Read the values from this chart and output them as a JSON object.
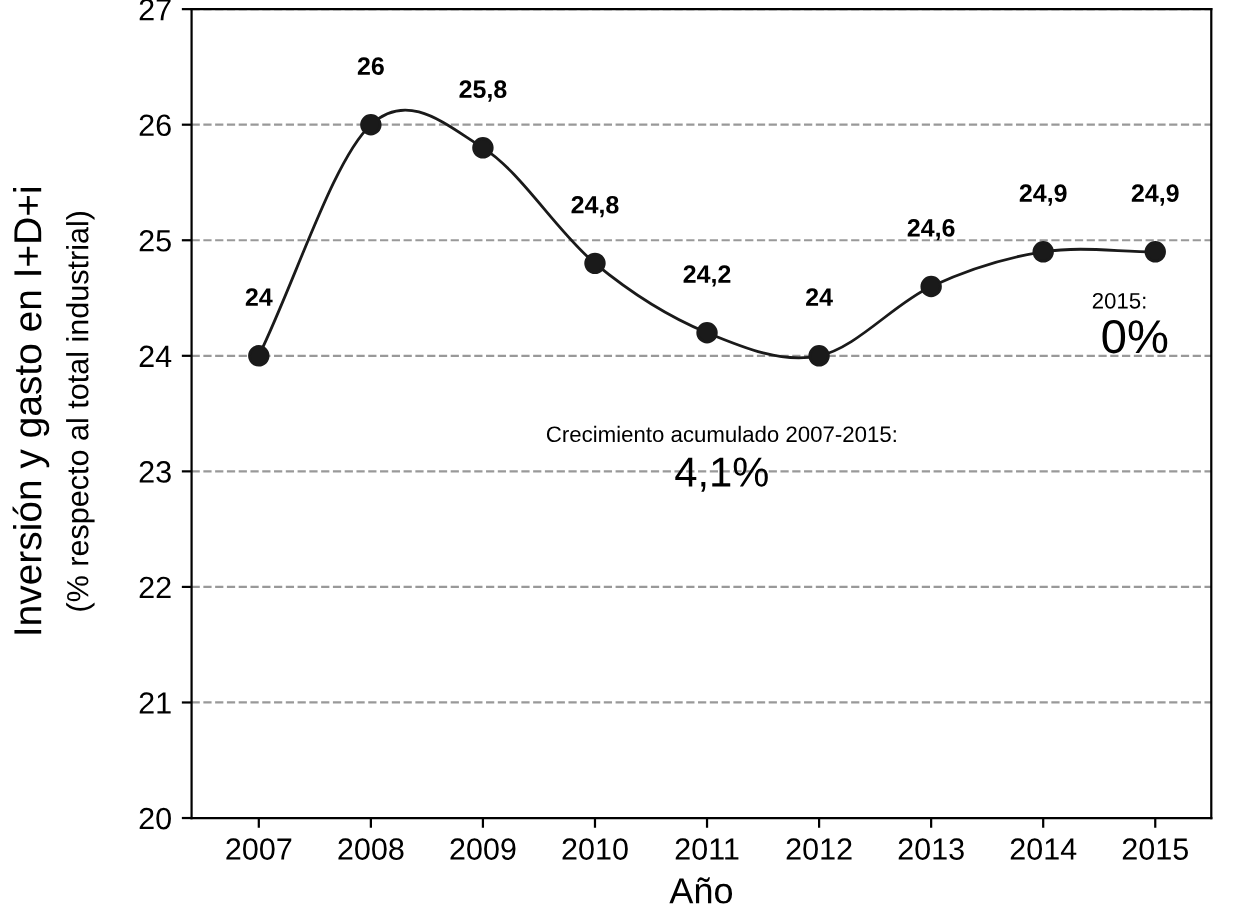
{
  "chart_data": {
    "type": "line",
    "xlabel": "Año",
    "ylabel": "Inversión y gasto en I+D+i\n(% respecto al total industrial)",
    "x": [
      2007,
      2008,
      2009,
      2010,
      2011,
      2012,
      2013,
      2014,
      2015
    ],
    "series": [
      {
        "color": "#1a1a1a",
        "values": [
          24,
          26,
          25.8,
          24.8,
          24.2,
          24,
          24.6,
          24.9,
          24.9
        ],
        "value_labels": [
          "24",
          "26",
          "25,8",
          "24,8",
          "24,2",
          "24",
          "24,6",
          "24,9",
          "24,9"
        ]
      }
    ],
    "xlim": [
      2006.4,
      2015.5
    ],
    "xticks": [
      2007,
      2008,
      2009,
      2010,
      2011,
      2012,
      2013,
      2014,
      2015
    ],
    "ylim": [
      20,
      27
    ],
    "yticks": [
      20,
      21,
      22,
      23,
      24,
      25,
      26,
      27
    ],
    "grid": "y",
    "marker": "circle",
    "line_style": "solid",
    "annotations": [
      "Crecimiento acumulado 2007-2015:",
      "4,1%",
      "2015:",
      "0%"
    ]
  }
}
